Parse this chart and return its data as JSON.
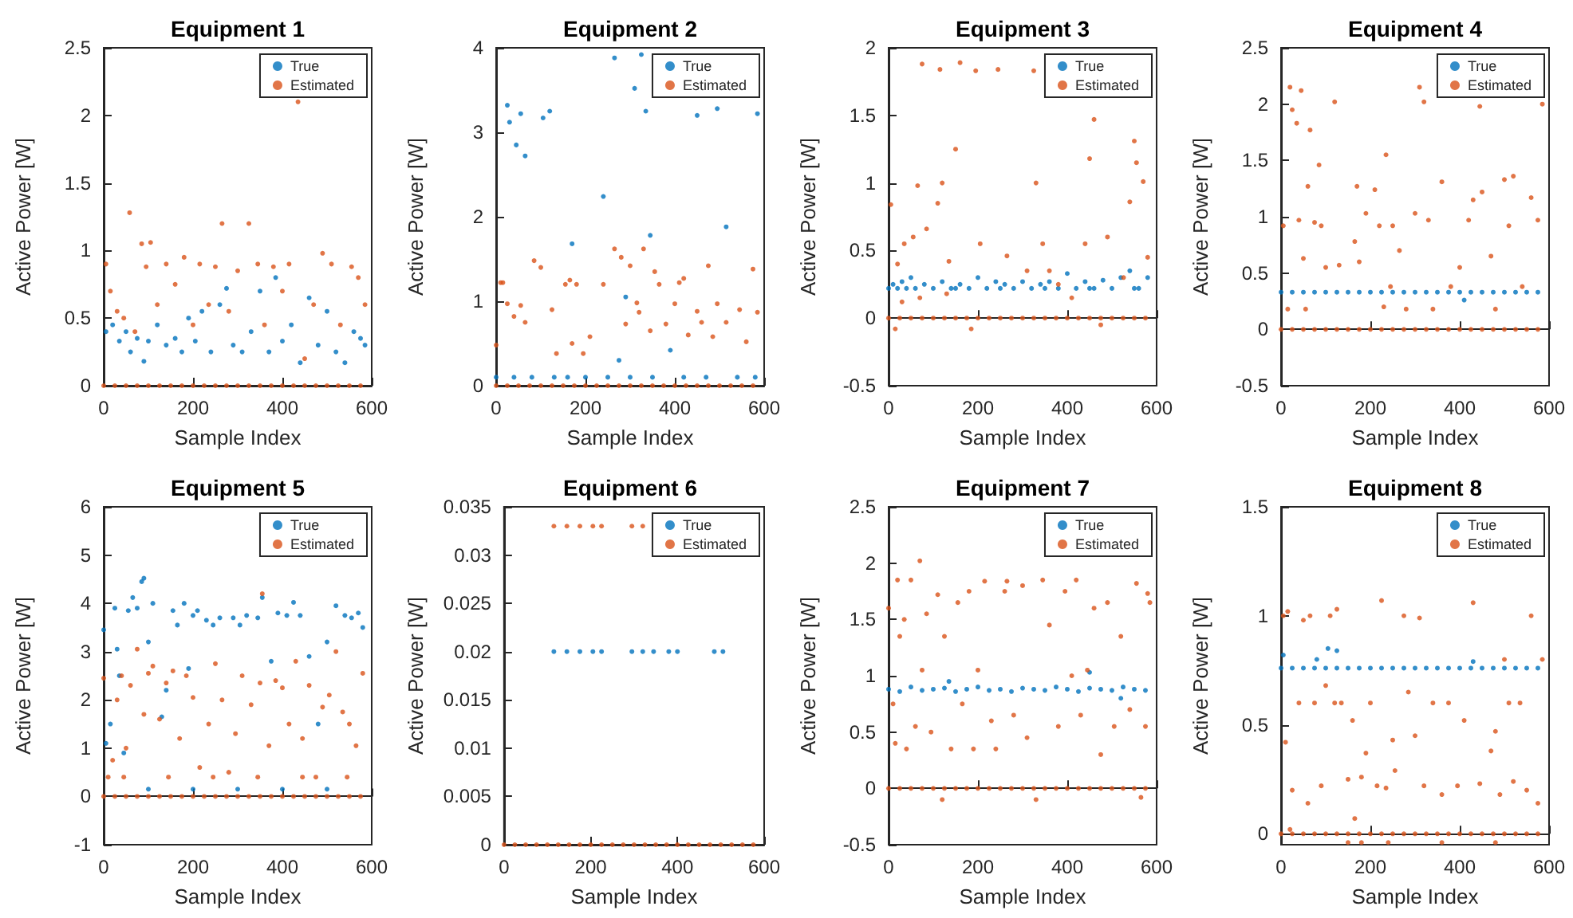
{
  "chart_data": [
    {
      "type": "scatter",
      "title": "Equipment 1",
      "xlabel": "Sample Index",
      "ylabel": "Active Power [W]",
      "xlim": [
        0,
        600
      ],
      "xticks": [
        0,
        200,
        400,
        600
      ],
      "ylim": [
        0,
        2.5
      ],
      "yticks": [
        0,
        0.5,
        1,
        1.5,
        2,
        2.5
      ],
      "legend": "top right",
      "marker": "circle",
      "series": [
        {
          "name": "True",
          "color": "#0072bd",
          "x": [
            5,
            20,
            35,
            50,
            60,
            75,
            90,
            100,
            120,
            140,
            160,
            175,
            190,
            205,
            220,
            240,
            260,
            275,
            290,
            310,
            330,
            350,
            370,
            385,
            400,
            420,
            440,
            460,
            480,
            500,
            520,
            540,
            560,
            575,
            585
          ],
          "values": [
            0.4,
            0.45,
            0.33,
            0.4,
            0.25,
            0.35,
            0.18,
            0.33,
            0.45,
            0.3,
            0.35,
            0.25,
            0.5,
            0.33,
            0.55,
            0.25,
            0.6,
            0.72,
            0.3,
            0.25,
            0.4,
            0.7,
            0.25,
            0.8,
            0.33,
            0.45,
            0.17,
            0.65,
            0.3,
            0.55,
            0.25,
            0.17,
            0.4,
            0.35,
            0.3
          ]
        },
        {
          "name": "Estimated",
          "color": "#d95319",
          "x": [
            5,
            15,
            30,
            45,
            58,
            70,
            85,
            95,
            105,
            120,
            140,
            160,
            180,
            200,
            215,
            235,
            250,
            265,
            280,
            300,
            325,
            345,
            360,
            380,
            400,
            415,
            435,
            450,
            470,
            490,
            510,
            530,
            555,
            570,
            585,
            0,
            25,
            50,
            75,
            100,
            125,
            150,
            175,
            200,
            225,
            250,
            275,
            300,
            325,
            350,
            375,
            400,
            425,
            450,
            475,
            500,
            525,
            550,
            575
          ],
          "values": [
            0.9,
            0.7,
            0.55,
            0.5,
            1.28,
            0.4,
            1.05,
            0.88,
            1.06,
            0.6,
            0.9,
            0.75,
            0.95,
            0.45,
            0.9,
            0.6,
            0.88,
            1.2,
            0.55,
            0.85,
            1.2,
            0.9,
            0.45,
            0.88,
            0.7,
            0.9,
            2.1,
            0.2,
            0.6,
            0.98,
            0.9,
            0.45,
            0.88,
            0.8,
            0.6,
            0,
            0,
            0,
            0,
            0,
            0,
            0,
            0,
            0,
            0,
            0,
            0,
            0,
            0,
            0,
            0,
            0,
            0,
            0,
            0,
            0,
            0,
            0,
            0
          ]
        }
      ]
    },
    {
      "type": "scatter",
      "title": "Equipment 2",
      "xlabel": "Sample Index",
      "ylabel": "Active Power [W]",
      "xlim": [
        0,
        600
      ],
      "xticks": [
        0,
        200,
        400,
        600
      ],
      "ylim": [
        0,
        4
      ],
      "yticks": [
        0,
        1,
        2,
        3,
        4
      ],
      "legend": "top right",
      "marker": "circle",
      "series": [
        {
          "name": "True",
          "color": "#0072bd",
          "x": [
            25,
            30,
            45,
            55,
            65,
            105,
            120,
            170,
            240,
            265,
            275,
            290,
            310,
            325,
            335,
            345,
            390,
            450,
            495,
            515,
            585,
            0,
            40,
            80,
            130,
            160,
            200,
            250,
            300,
            350,
            420,
            470,
            540,
            580
          ],
          "values": [
            3.32,
            3.12,
            2.85,
            3.22,
            2.72,
            3.17,
            3.25,
            1.68,
            2.24,
            3.88,
            0.3,
            1.05,
            3.52,
            3.92,
            3.25,
            1.78,
            0.42,
            3.2,
            3.28,
            1.88,
            3.22,
            0.1,
            0.1,
            0.1,
            0.1,
            0.1,
            0.1,
            0.1,
            0.1,
            0.1,
            0.1,
            0.1,
            0.1,
            0.1
          ]
        },
        {
          "name": "Estimated",
          "color": "#d95319",
          "x": [
            0,
            10,
            15,
            25,
            40,
            55,
            65,
            85,
            100,
            125,
            135,
            155,
            165,
            170,
            180,
            195,
            210,
            240,
            265,
            280,
            290,
            300,
            315,
            320,
            330,
            345,
            355,
            365,
            380,
            400,
            410,
            420,
            430,
            450,
            460,
            475,
            485,
            495,
            515,
            545,
            560,
            575,
            585,
            0,
            25,
            50,
            75,
            100,
            125,
            150,
            175,
            200,
            225,
            250,
            275,
            300,
            325,
            350,
            375,
            400,
            425,
            450,
            475,
            500,
            525,
            550,
            575
          ],
          "values": [
            0.48,
            1.22,
            1.22,
            0.97,
            0.82,
            0.95,
            0.75,
            1.48,
            1.4,
            0.9,
            0.38,
            1.2,
            1.25,
            0.5,
            1.2,
            0.38,
            0.58,
            1.2,
            1.62,
            1.52,
            0.73,
            1.42,
            0.98,
            0.87,
            1.62,
            0.65,
            1.35,
            1.2,
            0.73,
            0.97,
            1.22,
            1.27,
            0.6,
            0.88,
            0.75,
            1.42,
            0.58,
            0.97,
            0.75,
            0.9,
            0.52,
            1.38,
            0.87,
            0,
            0,
            0,
            0,
            0,
            0,
            0,
            0,
            0,
            0,
            0,
            0,
            0,
            0,
            0,
            0,
            0,
            0,
            0,
            0,
            0,
            0,
            0,
            0
          ]
        }
      ]
    },
    {
      "type": "scatter",
      "title": "Equipment 3",
      "xlabel": "Sample Index",
      "ylabel": "Active Power [W]",
      "xlim": [
        0,
        600
      ],
      "xticks": [
        0,
        200,
        400,
        600
      ],
      "ylim": [
        -0.5,
        2
      ],
      "yticks": [
        -0.5,
        0,
        0.5,
        1,
        1.5,
        2
      ],
      "legend": "top right",
      "marker": "circle",
      "series": [
        {
          "name": "True",
          "color": "#0072bd",
          "x": [
            0,
            10,
            20,
            30,
            40,
            50,
            60,
            80,
            100,
            120,
            140,
            160,
            180,
            200,
            220,
            240,
            260,
            280,
            300,
            320,
            340,
            360,
            380,
            400,
            420,
            440,
            460,
            480,
            500,
            520,
            540,
            560,
            580,
            250,
            150,
            350,
            450,
            550
          ],
          "values": [
            0.22,
            0.25,
            0.22,
            0.27,
            0.22,
            0.3,
            0.22,
            0.25,
            0.22,
            0.27,
            0.22,
            0.25,
            0.22,
            0.3,
            0.22,
            0.27,
            0.25,
            0.22,
            0.27,
            0.22,
            0.25,
            0.27,
            0.22,
            0.33,
            0.22,
            0.27,
            0.22,
            0.28,
            0.22,
            0.3,
            0.35,
            0.22,
            0.3,
            0.22,
            0.22,
            0.22,
            0.22,
            0.22
          ]
        },
        {
          "name": "Estimated",
          "color": "#d95319",
          "x": [
            5,
            15,
            20,
            35,
            55,
            65,
            75,
            85,
            110,
            115,
            120,
            135,
            150,
            160,
            185,
            195,
            205,
            245,
            265,
            310,
            325,
            330,
            345,
            360,
            380,
            410,
            440,
            450,
            460,
            475,
            490,
            526,
            540,
            550,
            555,
            570,
            580,
            30,
            70,
            130,
            0,
            25,
            50,
            75,
            100,
            125,
            150,
            175,
            200,
            225,
            250,
            275,
            300,
            325,
            350,
            375,
            400,
            425,
            450,
            475,
            500,
            525,
            550,
            575
          ],
          "values": [
            0.84,
            -0.08,
            0.4,
            0.55,
            0.6,
            0.98,
            1.88,
            0.66,
            0.85,
            1.84,
            1.0,
            0.42,
            1.25,
            1.89,
            -0.08,
            1.83,
            0.55,
            1.84,
            0.46,
            0.35,
            1.83,
            1.0,
            0.55,
            0.35,
            0.25,
            0.15,
            0.55,
            1.18,
            1.47,
            -0.05,
            0.6,
            0.3,
            0.86,
            1.31,
            1.15,
            1.01,
            0.45,
            0.12,
            0.15,
            0.18,
            0,
            0,
            0,
            0,
            0,
            0,
            0,
            0,
            0,
            0,
            0,
            0,
            0,
            0,
            0,
            0,
            0,
            0,
            0,
            0,
            0,
            0,
            0,
            0
          ]
        }
      ]
    },
    {
      "type": "scatter",
      "title": "Equipment 4",
      "xlabel": "Sample Index",
      "ylabel": "Active Power [W]",
      "xlim": [
        0,
        600
      ],
      "xticks": [
        0,
        200,
        400,
        600
      ],
      "ylim": [
        -0.5,
        2.5
      ],
      "yticks": [
        -0.5,
        0,
        0.5,
        1,
        1.5,
        2,
        2.5
      ],
      "legend": "top right",
      "marker": "circle",
      "series": [
        {
          "name": "True",
          "color": "#0072bd",
          "x": [
            0,
            25,
            50,
            75,
            100,
            125,
            150,
            175,
            200,
            225,
            250,
            275,
            300,
            325,
            350,
            375,
            400,
            425,
            450,
            475,
            500,
            525,
            550,
            575,
            410
          ],
          "values": [
            0.33,
            0.33,
            0.33,
            0.33,
            0.33,
            0.33,
            0.33,
            0.33,
            0.33,
            0.33,
            0.33,
            0.33,
            0.33,
            0.33,
            0.33,
            0.33,
            0.33,
            0.33,
            0.33,
            0.33,
            0.33,
            0.33,
            0.33,
            0.33,
            0.26
          ]
        },
        {
          "name": "Estimated",
          "color": "#d95319",
          "x": [
            5,
            15,
            20,
            25,
            35,
            40,
            45,
            50,
            55,
            60,
            65,
            75,
            85,
            90,
            100,
            120,
            130,
            165,
            170,
            175,
            190,
            210,
            220,
            230,
            235,
            245,
            250,
            265,
            280,
            300,
            310,
            320,
            330,
            340,
            360,
            380,
            400,
            420,
            430,
            445,
            450,
            470,
            480,
            500,
            510,
            520,
            540,
            560,
            575,
            585,
            0,
            25,
            50,
            75,
            100,
            125,
            150,
            175,
            200,
            225,
            250,
            275,
            300,
            325,
            350,
            375,
            400,
            425,
            450,
            475,
            500,
            525,
            550,
            575
          ],
          "values": [
            0.92,
            0.18,
            2.15,
            1.95,
            1.83,
            0.97,
            2.12,
            0.63,
            0.18,
            1.27,
            1.77,
            0.95,
            1.46,
            0.92,
            0.55,
            2.02,
            0.57,
            0.78,
            1.27,
            0.6,
            1.03,
            1.24,
            0.92,
            0.2,
            1.55,
            0.38,
            0.92,
            0.7,
            0.18,
            1.03,
            2.15,
            2.02,
            0.97,
            0.18,
            1.31,
            0.38,
            0.55,
            0.97,
            1.15,
            1.98,
            1.22,
            0.65,
            0.18,
            1.33,
            0.92,
            1.36,
            0.38,
            1.17,
            0.97,
            2.0,
            0,
            0,
            0,
            0,
            0,
            0,
            0,
            0,
            0,
            0,
            0,
            0,
            0,
            0,
            0,
            0,
            0,
            0,
            0,
            0,
            0,
            0,
            0,
            0
          ]
        }
      ]
    },
    {
      "type": "scatter",
      "title": "Equipment 5",
      "xlabel": "Sample Index",
      "ylabel": "Active Power [W]",
      "xlim": [
        0,
        600
      ],
      "xticks": [
        0,
        200,
        400,
        600
      ],
      "ylim": [
        -1,
        6
      ],
      "yticks": [
        -1,
        0,
        1,
        2,
        3,
        4,
        5,
        6
      ],
      "legend": "top right",
      "marker": "circle",
      "series": [
        {
          "name": "True",
          "color": "#0072bd",
          "x": [
            0,
            5,
            15,
            25,
            30,
            35,
            45,
            55,
            65,
            75,
            85,
            90,
            100,
            110,
            130,
            140,
            155,
            165,
            180,
            190,
            200,
            210,
            230,
            245,
            260,
            290,
            305,
            320,
            345,
            355,
            375,
            390,
            410,
            425,
            440,
            460,
            480,
            500,
            520,
            540,
            555,
            570,
            580,
            100,
            200,
            300,
            400,
            500
          ],
          "values": [
            3.45,
            1.1,
            1.5,
            3.9,
            3.05,
            2.5,
            0.9,
            3.85,
            4.12,
            3.9,
            4.45,
            4.52,
            3.2,
            4.0,
            1.65,
            2.2,
            3.85,
            3.55,
            4.0,
            2.65,
            3.75,
            3.85,
            3.65,
            3.55,
            3.7,
            3.7,
            3.55,
            3.75,
            3.7,
            4.12,
            2.8,
            3.8,
            3.75,
            4.02,
            3.75,
            2.9,
            1.5,
            3.2,
            3.95,
            3.75,
            3.7,
            3.8,
            3.5,
            0.15,
            0.15,
            0.15,
            0.15,
            0.15
          ]
        },
        {
          "name": "Estimated",
          "color": "#d95319",
          "x": [
            0,
            10,
            20,
            30,
            40,
            50,
            60,
            75,
            90,
            100,
            110,
            125,
            140,
            155,
            170,
            185,
            200,
            215,
            235,
            250,
            265,
            280,
            295,
            310,
            330,
            350,
            355,
            370,
            385,
            400,
            415,
            430,
            445,
            460,
            475,
            490,
            505,
            520,
            535,
            550,
            565,
            580,
            45,
            145,
            245,
            345,
            445,
            545,
            0,
            25,
            50,
            75,
            100,
            125,
            150,
            175,
            200,
            225,
            250,
            275,
            300,
            325,
            350,
            375,
            400,
            425,
            450,
            475,
            500,
            525,
            550,
            575
          ],
          "values": [
            2.45,
            0.4,
            0.75,
            2.0,
            2.5,
            1.0,
            2.3,
            3.05,
            1.7,
            2.55,
            2.7,
            1.6,
            2.35,
            2.6,
            1.2,
            2.5,
            2.05,
            0.6,
            1.5,
            2.75,
            2.0,
            0.5,
            1.3,
            2.5,
            1.9,
            2.35,
            4.2,
            1.05,
            2.4,
            2.25,
            1.5,
            2.8,
            1.2,
            2.3,
            0.4,
            1.85,
            2.1,
            3.0,
            1.75,
            1.5,
            1.05,
            2.55,
            0.4,
            0.4,
            0.4,
            0.4,
            0.4,
            0.4,
            0,
            0,
            0,
            0,
            0,
            0,
            0,
            0,
            0,
            0,
            0,
            0,
            0,
            0,
            0,
            0,
            0,
            0,
            0,
            0,
            0,
            0,
            0,
            0
          ]
        }
      ]
    },
    {
      "type": "scatter",
      "title": "Equipment 6",
      "xlabel": "Sample Index",
      "ylabel": "Active Power [W]",
      "xlim": [
        0,
        600
      ],
      "xticks": [
        0,
        200,
        400,
        600
      ],
      "ylim": [
        0,
        0.035
      ],
      "yticks": [
        0,
        0.005,
        0.01,
        0.015,
        0.02,
        0.025,
        0.03,
        0.035
      ],
      "legend": "top right",
      "marker": "circle",
      "series": [
        {
          "name": "True",
          "color": "#0072bd",
          "x": [
            115,
            145,
            175,
            205,
            225,
            295,
            320,
            345,
            380,
            400,
            485,
            505
          ],
          "values": [
            0.02,
            0.02,
            0.02,
            0.02,
            0.02,
            0.02,
            0.02,
            0.02,
            0.02,
            0.02,
            0.02,
            0.02
          ]
        },
        {
          "name": "Estimated",
          "color": "#d95319",
          "x": [
            115,
            145,
            175,
            205,
            225,
            295,
            320,
            0,
            25,
            50,
            75,
            100,
            125,
            150,
            175,
            200,
            225,
            250,
            275,
            300,
            325,
            350,
            375,
            400,
            425,
            450,
            475,
            500,
            525,
            550,
            575
          ],
          "values": [
            0.033,
            0.033,
            0.033,
            0.033,
            0.033,
            0.033,
            0.033,
            0,
            0,
            0,
            0,
            0,
            0,
            0,
            0,
            0,
            0,
            0,
            0,
            0,
            0,
            0,
            0,
            0,
            0,
            0,
            0,
            0,
            0,
            0,
            0
          ]
        }
      ]
    },
    {
      "type": "scatter",
      "title": "Equipment 7",
      "xlabel": "Sample Index",
      "ylabel": "Active Power [W]",
      "xlim": [
        0,
        600
      ],
      "xticks": [
        0,
        200,
        400,
        600
      ],
      "ylim": [
        -0.5,
        2.5
      ],
      "yticks": [
        -0.5,
        0,
        0.5,
        1,
        1.5,
        2,
        2.5
      ],
      "legend": "top right",
      "marker": "circle",
      "series": [
        {
          "name": "True",
          "color": "#0072bd",
          "x": [
            0,
            25,
            50,
            75,
            100,
            125,
            150,
            175,
            200,
            225,
            250,
            275,
            300,
            325,
            350,
            375,
            400,
            425,
            450,
            475,
            500,
            525,
            550,
            575,
            135,
            450,
            520
          ],
          "values": [
            0.88,
            0.86,
            0.9,
            0.87,
            0.88,
            0.89,
            0.86,
            0.88,
            0.9,
            0.87,
            0.88,
            0.86,
            0.89,
            0.88,
            0.87,
            0.9,
            0.88,
            0.86,
            0.89,
            0.88,
            0.87,
            0.9,
            0.88,
            0.87,
            0.95,
            1.03,
            0.8
          ]
        },
        {
          "name": "Estimated",
          "color": "#d95319",
          "x": [
            0,
            10,
            15,
            20,
            25,
            35,
            40,
            50,
            60,
            70,
            75,
            85,
            95,
            110,
            120,
            125,
            140,
            155,
            165,
            180,
            190,
            200,
            215,
            230,
            240,
            260,
            265,
            280,
            300,
            310,
            330,
            345,
            360,
            380,
            395,
            410,
            420,
            430,
            445,
            460,
            475,
            490,
            505,
            520,
            540,
            555,
            565,
            575,
            580,
            585,
            0,
            25,
            50,
            75,
            100,
            125,
            150,
            175,
            200,
            225,
            250,
            275,
            300,
            325,
            350,
            375,
            400,
            425,
            450,
            475,
            500,
            525,
            550,
            575
          ],
          "values": [
            1.6,
            0.75,
            0.4,
            1.85,
            1.35,
            1.5,
            0.35,
            1.85,
            0.55,
            2.02,
            1.05,
            1.55,
            0.5,
            1.72,
            -0.1,
            1.35,
            0.35,
            1.65,
            0.75,
            1.75,
            0.35,
            1.05,
            1.84,
            0.6,
            0.35,
            1.75,
            1.84,
            0.65,
            1.8,
            0.45,
            -0.1,
            1.85,
            1.45,
            0.55,
            1.75,
            1.0,
            1.85,
            0.65,
            1.05,
            1.6,
            0.3,
            1.65,
            0.55,
            1.35,
            0.7,
            1.82,
            -0.08,
            0.55,
            1.73,
            1.65,
            0,
            0,
            0,
            0,
            0,
            0,
            0,
            0,
            0,
            0,
            0,
            0,
            0,
            0,
            0,
            0,
            0,
            0,
            0,
            0,
            0,
            0,
            0,
            0
          ]
        }
      ]
    },
    {
      "type": "scatter",
      "title": "Equipment 8",
      "xlabel": "Sample Index",
      "ylabel": "Active Power [W]",
      "xlim": [
        0,
        600
      ],
      "xticks": [
        0,
        200,
        400,
        600
      ],
      "ylim": [
        -0.05,
        1.5
      ],
      "yticks": [
        0,
        0.5,
        1,
        1.5
      ],
      "legend": "top right",
      "marker": "circle",
      "series": [
        {
          "name": "True",
          "color": "#0072bd",
          "x": [
            0,
            25,
            50,
            75,
            100,
            125,
            150,
            175,
            200,
            225,
            250,
            275,
            300,
            325,
            350,
            375,
            400,
            425,
            450,
            475,
            500,
            525,
            550,
            575,
            5,
            80,
            105,
            125,
            430
          ],
          "values": [
            0.76,
            0.76,
            0.76,
            0.76,
            0.76,
            0.76,
            0.76,
            0.76,
            0.76,
            0.76,
            0.76,
            0.76,
            0.76,
            0.76,
            0.76,
            0.76,
            0.76,
            0.76,
            0.76,
            0.76,
            0.76,
            0.76,
            0.76,
            0.76,
            0.82,
            0.8,
            0.85,
            0.84,
            0.79
          ]
        },
        {
          "name": "Estimated",
          "color": "#d95319",
          "x": [
            5,
            10,
            15,
            20,
            25,
            40,
            50,
            60,
            65,
            75,
            90,
            100,
            110,
            120,
            125,
            135,
            150,
            160,
            165,
            180,
            190,
            200,
            215,
            225,
            235,
            250,
            255,
            275,
            285,
            300,
            310,
            320,
            340,
            360,
            375,
            395,
            410,
            430,
            445,
            470,
            480,
            490,
            500,
            510,
            520,
            535,
            550,
            560,
            575,
            585,
            150,
            180,
            240,
            360,
            480,
            0,
            25,
            50,
            75,
            100,
            125,
            150,
            175,
            200,
            225,
            250,
            275,
            300,
            325,
            350,
            375,
            400,
            425,
            450,
            475,
            500,
            525,
            550,
            575
          ],
          "values": [
            1.0,
            0.42,
            1.02,
            0.02,
            0.2,
            0.6,
            0.98,
            0.14,
            1.0,
            0.6,
            0.22,
            0.68,
            1.0,
            0.6,
            1.03,
            0.6,
            0.25,
            0.52,
            0.07,
            0.26,
            0.37,
            0.6,
            0.22,
            1.07,
            0.21,
            0.43,
            0.29,
            1.0,
            0.65,
            0.45,
            0.99,
            0.22,
            0.6,
            0.18,
            0.6,
            0.22,
            0.52,
            1.06,
            0.23,
            0.38,
            0.47,
            0.18,
            0.8,
            0.6,
            0.24,
            0.6,
            0.2,
            1.0,
            0.14,
            0.8,
            -0.04,
            -0.04,
            -0.04,
            -0.04,
            -0.04,
            0,
            0,
            0,
            0,
            0,
            0,
            0,
            0,
            0,
            0,
            0,
            0,
            0,
            0,
            0,
            0,
            0,
            0,
            0,
            0,
            0,
            0,
            0,
            0
          ]
        }
      ]
    }
  ]
}
